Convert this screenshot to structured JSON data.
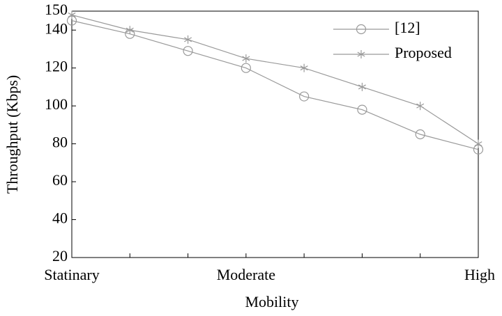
{
  "chart_data": {
    "type": "line",
    "xlabel": "Mobility",
    "ylabel": "Throughput (Kbps)",
    "categories": [
      "Statinary",
      null,
      null,
      "Moderate",
      null,
      null,
      null,
      "High"
    ],
    "series": [
      {
        "name": "[12]",
        "color": "#999999",
        "marker": "circle",
        "values": [
          145,
          138,
          129,
          120,
          105,
          98,
          85,
          77
        ]
      },
      {
        "name": "Proposed",
        "color": "#999999",
        "marker": "asterisk",
        "values": [
          148,
          140,
          135,
          125,
          120,
          110,
          100,
          80
        ]
      }
    ],
    "ylim": [
      20,
      150
    ],
    "yticks": [
      20,
      40,
      60,
      80,
      100,
      120,
      140,
      150
    ],
    "grid": false,
    "legend": "upper right"
  }
}
